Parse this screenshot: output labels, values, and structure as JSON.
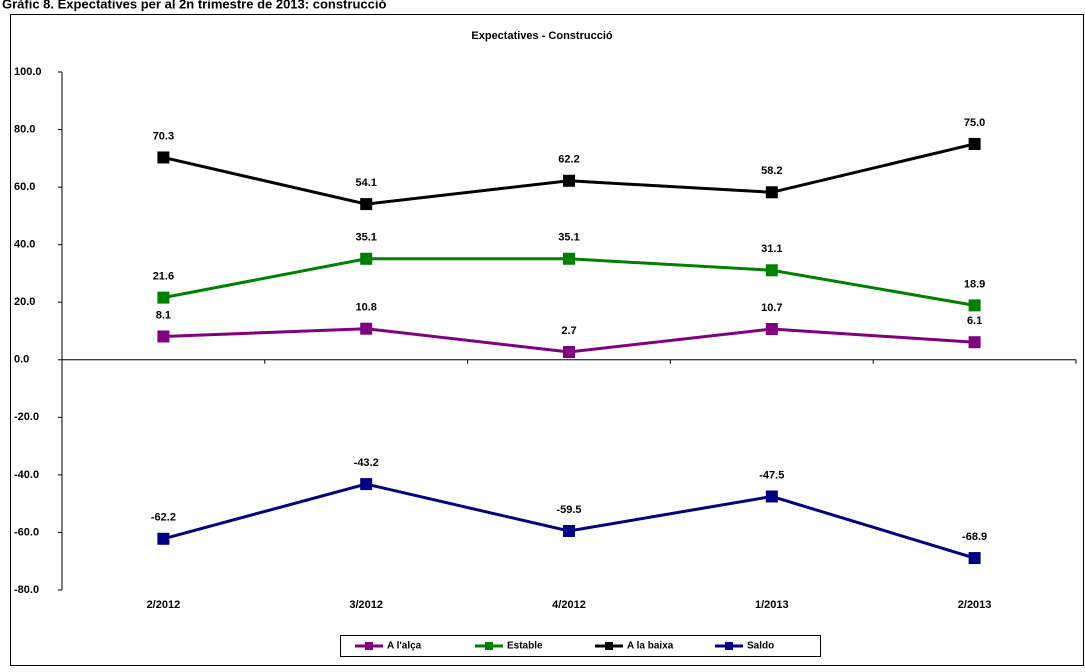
{
  "header": {
    "title": "Gràfic 8. Expectatives per al 2n trimestre de 2013: construcció"
  },
  "chart_data": {
    "type": "line",
    "title": "Expectatives - Construcció",
    "categories": [
      "2/2012",
      "3/2012",
      "4/2012",
      "1/2013",
      "2/2013"
    ],
    "series": [
      {
        "name": "A l'alça",
        "color": "#800080",
        "values": [
          8.1,
          10.8,
          2.7,
          10.7,
          6.1
        ],
        "value_labels": [
          "8.1",
          "10.8",
          "2.7",
          "10.7",
          "6.1"
        ]
      },
      {
        "name": "Estable",
        "color": "#008000",
        "values": [
          21.6,
          35.1,
          35.1,
          31.1,
          18.9
        ],
        "value_labels": [
          "21.6",
          "35.1",
          "35.1",
          "31.1",
          "18.9"
        ]
      },
      {
        "name": "A la baixa",
        "color": "#000000",
        "values": [
          70.3,
          54.1,
          62.2,
          58.2,
          75.0
        ],
        "value_labels": [
          "70.3",
          "54.1",
          "62.2",
          "58.2",
          "75.0"
        ]
      },
      {
        "name": "Saldo",
        "color": "#000080",
        "values": [
          -62.2,
          -43.2,
          -59.5,
          -47.5,
          -68.9
        ],
        "value_labels": [
          "-62.2",
          "-43.2",
          "-59.5",
          "-47.5",
          "-68.9"
        ]
      }
    ],
    "ylim": [
      -80,
      100
    ],
    "yticks": [
      {
        "value": -80,
        "label": "-80.0"
      },
      {
        "value": -60,
        "label": "-60.0"
      },
      {
        "value": -40,
        "label": "-40.0"
      },
      {
        "value": -20,
        "label": "-20.0"
      },
      {
        "value": 0,
        "label": "0.0"
      },
      {
        "value": 20,
        "label": "20.0"
      },
      {
        "value": 40,
        "label": "40.0"
      },
      {
        "value": 60,
        "label": "60.0"
      },
      {
        "value": 80,
        "label": "80.0"
      },
      {
        "value": 100,
        "label": "100.0"
      }
    ],
    "legend": "bottom"
  }
}
